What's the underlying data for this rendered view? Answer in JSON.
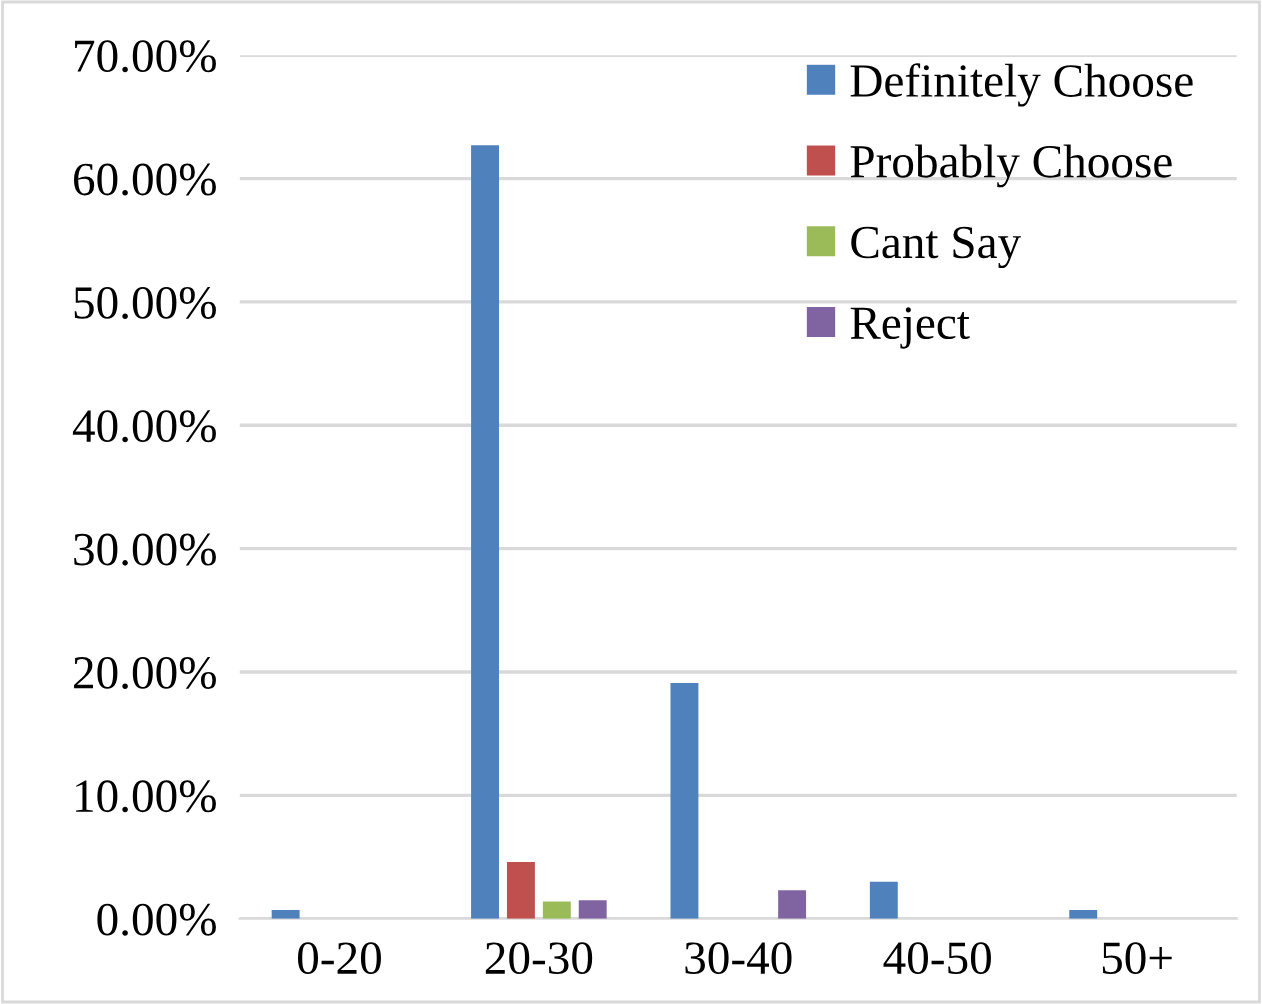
{
  "chart_data": {
    "type": "bar",
    "categories": [
      "0-20",
      "20-30",
      "30-40",
      "40-50",
      "50+"
    ],
    "series": [
      {
        "name": "Definitely Choose",
        "color": "#4f81bd",
        "values": [
          0.7,
          62.7,
          19.1,
          3.0,
          0.7
        ]
      },
      {
        "name": "Probably Choose",
        "color": "#c0504d",
        "values": [
          0,
          4.6,
          0,
          0,
          0
        ]
      },
      {
        "name": "Cant Say",
        "color": "#9bbb59",
        "values": [
          0,
          1.4,
          0,
          0,
          0
        ]
      },
      {
        "name": "Reject",
        "color": "#8064a2",
        "values": [
          0,
          1.5,
          2.3,
          0,
          0
        ]
      }
    ],
    "ylim": [
      0,
      70
    ],
    "yticks": [
      {
        "value": 0,
        "label": "0.00%"
      },
      {
        "value": 10,
        "label": "10.00%"
      },
      {
        "value": 20,
        "label": "20.00%"
      },
      {
        "value": 30,
        "label": "30.00%"
      },
      {
        "value": 40,
        "label": "40.00%"
      },
      {
        "value": 50,
        "label": "50.00%"
      },
      {
        "value": 60,
        "label": "60.00%"
      },
      {
        "value": 70,
        "label": "70.00%"
      }
    ],
    "grid": "y",
    "legend": "top right"
  }
}
